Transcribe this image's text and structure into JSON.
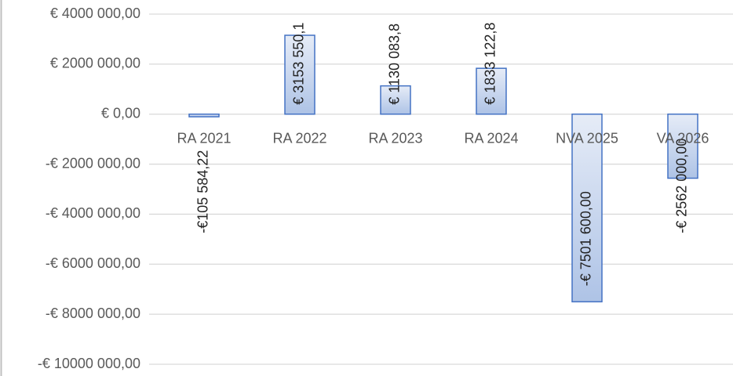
{
  "chart_data": {
    "type": "bar",
    "categories": [
      "RA 2021",
      "RA 2022",
      "RA 2023",
      "RA 2024",
      "NVA 2025",
      "VA 2026"
    ],
    "values": [
      -105584.22,
      3153550.1,
      1130083.8,
      1833122.8,
      -7501600,
      -2562000
    ],
    "value_labels": [
      "-€105 584,22",
      "€ 3153 550,1",
      "€ 1130 083,8",
      "€ 1833 122,8",
      "-€ 7501 600,00",
      "-€ 2562 000,00"
    ],
    "color": "#4472c4",
    "ylim": [
      -10000000,
      4000000
    ],
    "yticks": [
      {
        "value": 4000000,
        "label": "€ 4000 000,00"
      },
      {
        "value": 2000000,
        "label": "€ 2000 000,00"
      },
      {
        "value": 0,
        "label": "€  0,00"
      },
      {
        "value": -2000000,
        "label": "-€ 2000 000,00"
      },
      {
        "value": -4000000,
        "label": "-€ 4000 000,00"
      },
      {
        "value": -6000000,
        "label": "-€ 6000 000,00"
      },
      {
        "value": -8000000,
        "label": "-€ 8000 000,00"
      },
      {
        "value": -10000000,
        "label": "-€ 10000 000,00"
      }
    ],
    "grid": true
  }
}
